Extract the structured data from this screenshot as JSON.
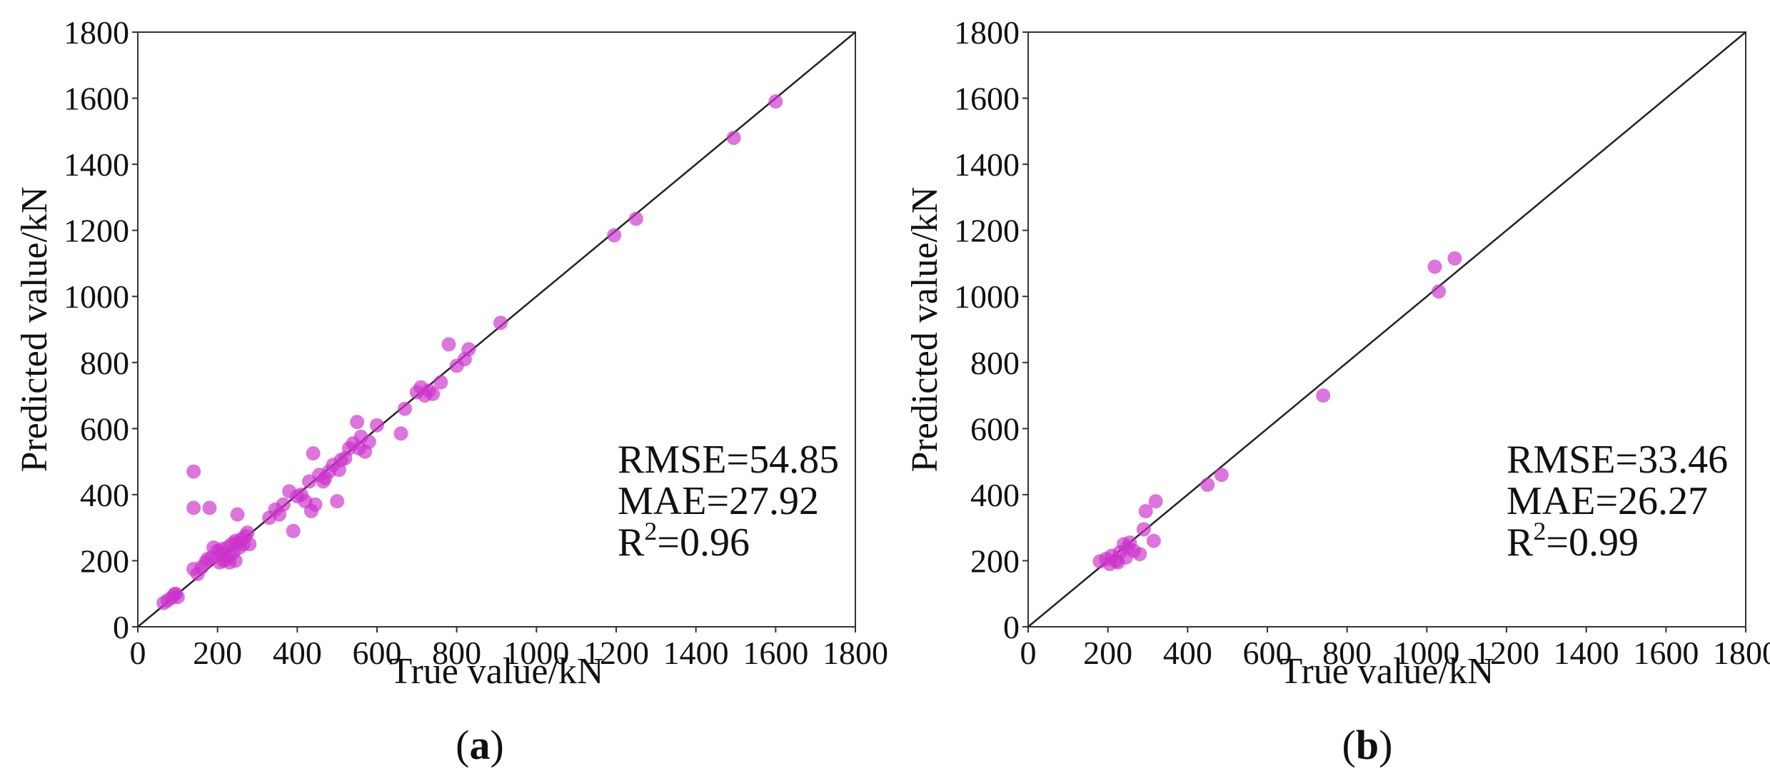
{
  "colors": {
    "point": "#cc33cc",
    "diagonal": "#222222",
    "axis": "#333333"
  },
  "chart_data": [
    {
      "type": "scatter",
      "panel_label": {
        "open": "(",
        "letter": "a",
        "close": ")"
      },
      "xlabel": "True value/kN",
      "ylabel": "Predicted value/kN",
      "xlim": [
        0,
        1800
      ],
      "ylim": [
        0,
        1800
      ],
      "xticks": [
        "0",
        "200",
        "400",
        "600",
        "800",
        "1000",
        "1200",
        "1400",
        "1600",
        "1800"
      ],
      "yticks": [
        "0",
        "200",
        "400",
        "600",
        "800",
        "1000",
        "1200",
        "1400",
        "1600",
        "1800"
      ],
      "grid": false,
      "reference_line": "y = x",
      "metrics": {
        "rmse": "RMSE=54.85",
        "mae": "MAE=27.92",
        "r2_prefix": "R",
        "r2_sup": "2",
        "r2_value": "=0.96"
      },
      "points": [
        [
          65,
          72
        ],
        [
          75,
          80
        ],
        [
          85,
          88
        ],
        [
          95,
          100
        ],
        [
          100,
          90
        ],
        [
          92,
          98
        ],
        [
          140,
          470
        ],
        [
          140,
          360
        ],
        [
          180,
          360
        ],
        [
          250,
          340
        ],
        [
          140,
          175
        ],
        [
          150,
          160
        ],
        [
          160,
          180
        ],
        [
          170,
          195
        ],
        [
          175,
          205
        ],
        [
          185,
          210
        ],
        [
          190,
          240
        ],
        [
          200,
          230
        ],
        [
          205,
          195
        ],
        [
          210,
          220
        ],
        [
          215,
          200
        ],
        [
          220,
          205
        ],
        [
          225,
          240
        ],
        [
          230,
          215
        ],
        [
          235,
          250
        ],
        [
          240,
          225
        ],
        [
          245,
          200
        ],
        [
          250,
          255
        ],
        [
          255,
          240
        ],
        [
          260,
          265
        ],
        [
          265,
          250
        ],
        [
          270,
          275
        ],
        [
          275,
          285
        ],
        [
          280,
          250
        ],
        [
          230,
          195
        ],
        [
          245,
          260
        ],
        [
          210,
          235
        ],
        [
          330,
          330
        ],
        [
          345,
          355
        ],
        [
          355,
          340
        ],
        [
          365,
          370
        ],
        [
          380,
          410
        ],
        [
          390,
          290
        ],
        [
          400,
          395
        ],
        [
          410,
          400
        ],
        [
          420,
          380
        ],
        [
          430,
          440
        ],
        [
          435,
          350
        ],
        [
          440,
          525
        ],
        [
          445,
          370
        ],
        [
          455,
          460
        ],
        [
          465,
          440
        ],
        [
          470,
          450
        ],
        [
          480,
          470
        ],
        [
          490,
          490
        ],
        [
          500,
          380
        ],
        [
          505,
          475
        ],
        [
          510,
          505
        ],
        [
          520,
          510
        ],
        [
          530,
          540
        ],
        [
          540,
          555
        ],
        [
          550,
          620
        ],
        [
          555,
          540
        ],
        [
          560,
          575
        ],
        [
          570,
          530
        ],
        [
          580,
          560
        ],
        [
          600,
          610
        ],
        [
          660,
          585
        ],
        [
          670,
          660
        ],
        [
          700,
          710
        ],
        [
          710,
          725
        ],
        [
          720,
          700
        ],
        [
          730,
          715
        ],
        [
          740,
          705
        ],
        [
          760,
          740
        ],
        [
          780,
          855
        ],
        [
          800,
          790
        ],
        [
          820,
          810
        ],
        [
          830,
          840
        ],
        [
          910,
          920
        ],
        [
          1195,
          1185
        ],
        [
          1250,
          1235
        ],
        [
          1495,
          1480
        ],
        [
          1600,
          1590
        ]
      ]
    },
    {
      "type": "scatter",
      "panel_label": {
        "open": "(",
        "letter": "b",
        "close": ")"
      },
      "xlabel": "True value/kN",
      "ylabel": "Predicted value/kN",
      "xlim": [
        0,
        1800
      ],
      "ylim": [
        0,
        1800
      ],
      "xticks": [
        "0",
        "200",
        "400",
        "600",
        "800",
        "1000",
        "1200",
        "1400",
        "1600",
        "1800"
      ],
      "yticks": [
        "0",
        "200",
        "400",
        "600",
        "800",
        "1000",
        "1200",
        "1400",
        "1600",
        "1800"
      ],
      "grid": false,
      "reference_line": "y = x",
      "metrics": {
        "rmse": "RMSE=33.46",
        "mae": "MAE=26.27",
        "r2_prefix": "R",
        "r2_sup": "2",
        "r2_value": "=0.99"
      },
      "points": [
        [
          180,
          198
        ],
        [
          195,
          205
        ],
        [
          205,
          190
        ],
        [
          210,
          215
        ],
        [
          220,
          200
        ],
        [
          225,
          195
        ],
        [
          230,
          225
        ],
        [
          240,
          250
        ],
        [
          245,
          210
        ],
        [
          250,
          240
        ],
        [
          255,
          255
        ],
        [
          265,
          230
        ],
        [
          280,
          220
        ],
        [
          290,
          295
        ],
        [
          295,
          350
        ],
        [
          315,
          260
        ],
        [
          320,
          380
        ],
        [
          450,
          430
        ],
        [
          485,
          460
        ],
        [
          740,
          700
        ],
        [
          1020,
          1090
        ],
        [
          1030,
          1015
        ],
        [
          1070,
          1115
        ]
      ]
    }
  ]
}
